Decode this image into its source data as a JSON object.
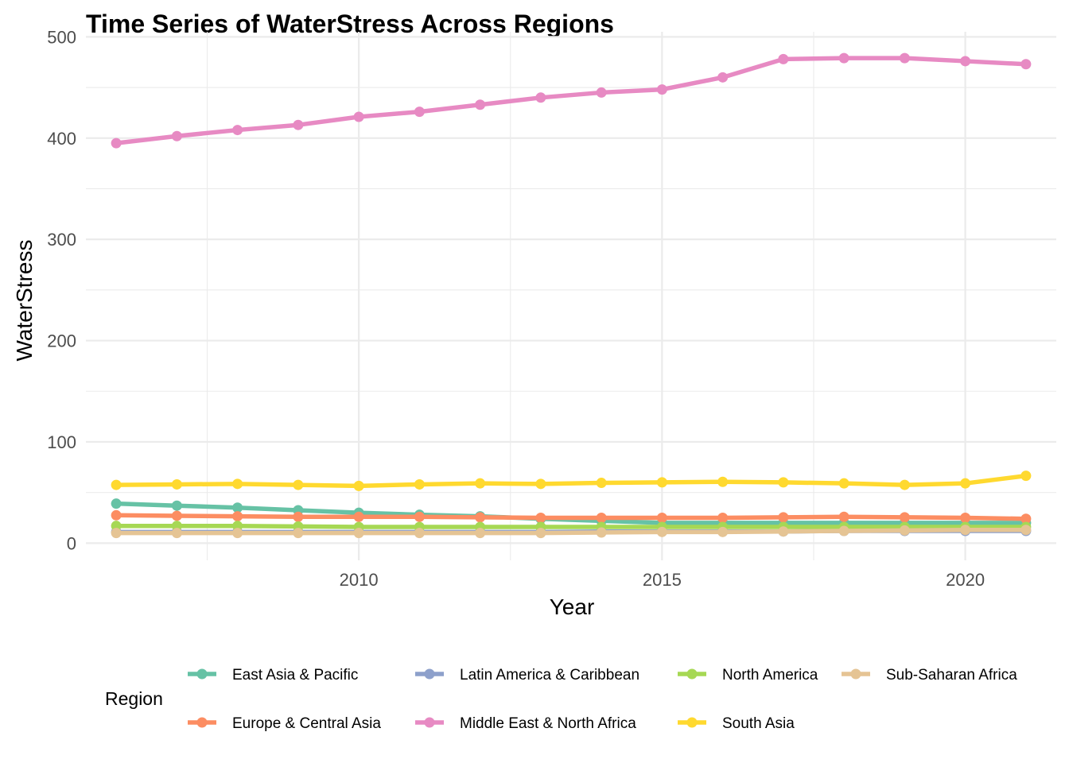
{
  "chart_data": {
    "type": "line",
    "title": "Time Series of WaterStress Across Regions",
    "xlabel": "Year",
    "ylabel": "WaterStress",
    "xlim": [
      2005.5,
      2021.5
    ],
    "ylim": [
      -17,
      505
    ],
    "x_ticks": [
      2010,
      2015,
      2020
    ],
    "x_tick_labels": [
      "2010",
      "2015",
      "2020"
    ],
    "y_ticks": [
      0,
      100,
      200,
      300,
      400,
      500
    ],
    "y_tick_labels": [
      "0",
      "100",
      "200",
      "300",
      "400",
      "500"
    ],
    "grid": true,
    "legend": {
      "title": "Region",
      "position": "bottom"
    },
    "x": [
      2006,
      2007,
      2008,
      2009,
      2010,
      2011,
      2012,
      2013,
      2014,
      2015,
      2016,
      2017,
      2018,
      2019,
      2020,
      2021
    ],
    "series": [
      {
        "name": "East Asia & Pacific",
        "color": "#66c2a5",
        "values": [
          39,
          37,
          35,
          32.5,
          30,
          28,
          26.5,
          24,
          22,
          20,
          20,
          20,
          20,
          20,
          20,
          20
        ]
      },
      {
        "name": "Europe & Central Asia",
        "color": "#fc8d62",
        "values": [
          27.5,
          27,
          26.5,
          26,
          26,
          26,
          25.5,
          25,
          25,
          25,
          25,
          25.5,
          26,
          25.5,
          25,
          24
        ]
      },
      {
        "name": "Latin America & Caribbean",
        "color": "#8da0cb",
        "values": [
          11,
          11,
          11,
          11,
          11,
          11,
          11,
          11,
          11.5,
          11.5,
          11.5,
          11.5,
          12,
          12,
          12,
          12
        ]
      },
      {
        "name": "Middle East & North Africa",
        "color": "#e78ac3",
        "values": [
          395,
          402,
          408,
          413,
          421,
          426,
          433,
          440,
          445,
          448,
          460,
          478,
          479,
          479,
          476,
          473
        ]
      },
      {
        "name": "North America",
        "color": "#a6d854",
        "values": [
          17,
          17,
          17,
          16.5,
          16,
          16,
          16,
          16,
          16,
          16,
          16,
          16,
          16,
          16,
          16,
          16
        ]
      },
      {
        "name": "South Asia",
        "color": "#ffd92f",
        "values": [
          57.5,
          58,
          58.5,
          57.5,
          56.5,
          58,
          59,
          58.5,
          59.5,
          60,
          60.5,
          60,
          59,
          57.5,
          59,
          66.5
        ]
      },
      {
        "name": "Sub-Saharan Africa",
        "color": "#e5c494",
        "values": [
          10,
          10,
          10,
          10,
          10,
          10,
          10,
          10,
          10.5,
          11,
          11,
          11.5,
          12,
          12.5,
          13,
          13
        ]
      }
    ]
  }
}
